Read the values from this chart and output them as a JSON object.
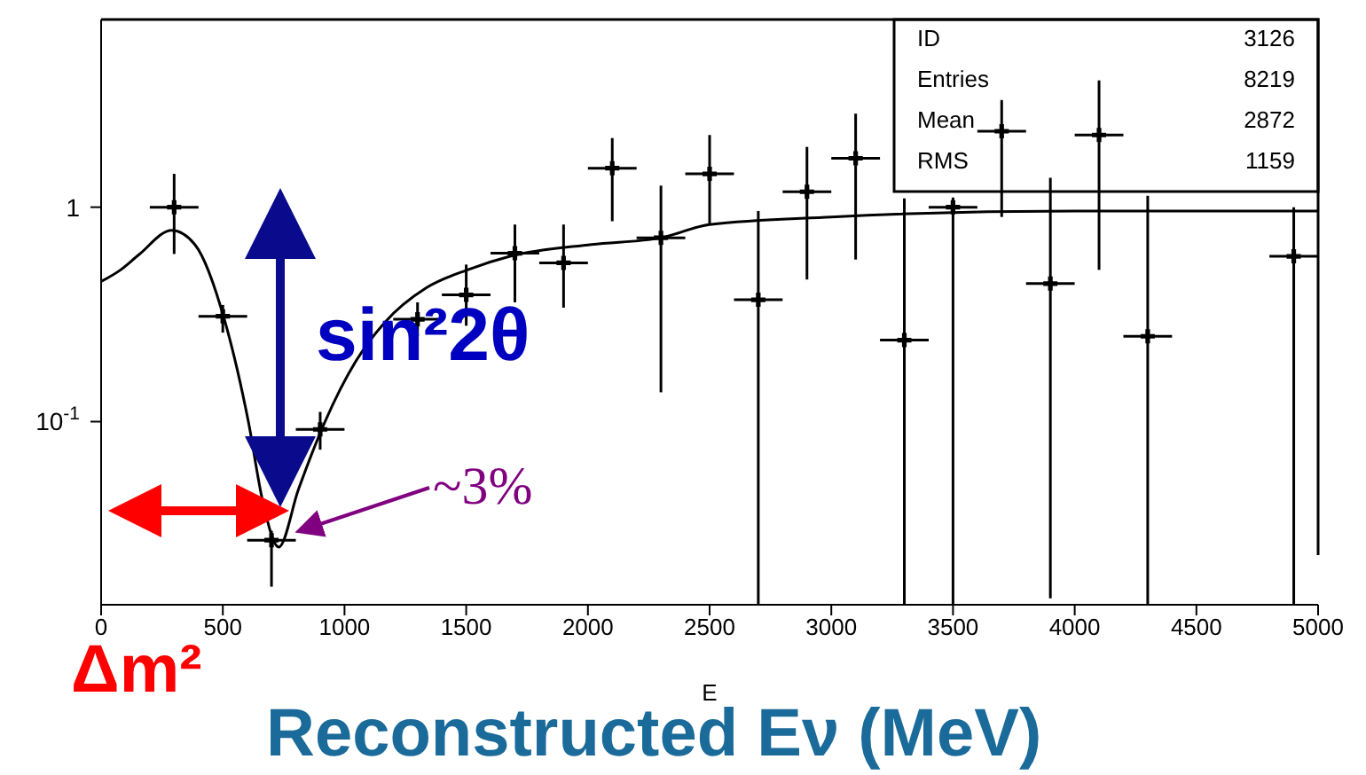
{
  "chart_data": {
    "type": "scatter",
    "xlabel": "E",
    "log": "y",
    "grid": false,
    "legend": false,
    "marker": "cross",
    "xlim": [
      0,
      5000
    ],
    "xticks": [
      0,
      500,
      1000,
      1500,
      2000,
      2500,
      3000,
      3500,
      4000,
      4500,
      5000
    ],
    "ylim": [
      0.014,
      7.5
    ],
    "yticks": [
      {
        "value": 0.1,
        "label": "10$^{-1}$"
      },
      1
    ],
    "series": [
      {
        "color": "#000000",
        "x": [
          300,
          500,
          700,
          900,
          1300,
          1500,
          1700,
          1900,
          2100,
          2300,
          2500,
          2700,
          2900,
          3100,
          3300,
          3500,
          3700,
          3900,
          4100,
          4300,
          4900
        ],
        "values": [
          1.0,
          0.31,
          0.028,
          0.092,
          0.3,
          0.39,
          0.61,
          0.55,
          1.52,
          0.72,
          1.43,
          0.37,
          1.18,
          1.69,
          0.24,
          1.0,
          2.26,
          0.44,
          2.17,
          0.25,
          0.59
        ],
        "errors": [
          [
            0.605,
            1.43
          ],
          [
            0.26,
            0.35
          ],
          [
            0.017,
            0.031
          ],
          [
            0.074,
            0.111
          ],
          [
            0.25,
            0.36
          ],
          [
            0.28,
            0.54
          ],
          [
            0.36,
            0.83
          ],
          [
            0.34,
            0.83
          ],
          [
            0.86,
            2.1
          ],
          [
            0.137,
            1.26
          ],
          [
            0.83,
            2.17
          ],
          [
            0.014,
            0.96
          ],
          [
            0.46,
            1.91
          ],
          [
            0.57,
            2.73
          ],
          [
            0.014,
            1.1
          ],
          [
            0.014,
            1.11
          ],
          [
            0.9,
            3.16
          ],
          [
            0.015,
            1.37
          ],
          [
            0.51,
            3.9
          ],
          [
            0.014,
            1.13
          ],
          [
            0.014,
            1.0
          ]
        ],
        "xerrors": [
          100,
          100,
          100,
          100,
          100,
          100,
          100,
          100,
          100,
          100,
          100,
          100,
          100,
          100,
          100,
          100,
          100,
          100,
          100,
          100,
          100
        ]
      },
      {
        "type": "line",
        "color": "#000000",
        "line_style": "solid",
        "marker": "none",
        "x": [
          0,
          80,
          155,
          290,
          385,
          510,
          605,
          665,
          730,
          810,
          920,
          1045,
          1165,
          1335,
          1505,
          1680,
          2015,
          2300,
          2500,
          3000,
          4000,
          5000
        ],
        "values": [
          0.45,
          0.51,
          0.6,
          0.78,
          0.67,
          0.29,
          0.1,
          0.042,
          0.026,
          0.048,
          0.1,
          0.19,
          0.29,
          0.42,
          0.51,
          0.59,
          0.67,
          0.72,
          0.83,
          0.9,
          0.96,
          0.96
        ]
      }
    ],
    "annotations": [
      "ID",
      "3126",
      "Entries",
      "8219",
      "Mean",
      "2872",
      "RMS",
      "1159",
      "sin²2θ",
      "~3%",
      "Δm²",
      "Reconstructed Eν (MeV)"
    ]
  }
}
